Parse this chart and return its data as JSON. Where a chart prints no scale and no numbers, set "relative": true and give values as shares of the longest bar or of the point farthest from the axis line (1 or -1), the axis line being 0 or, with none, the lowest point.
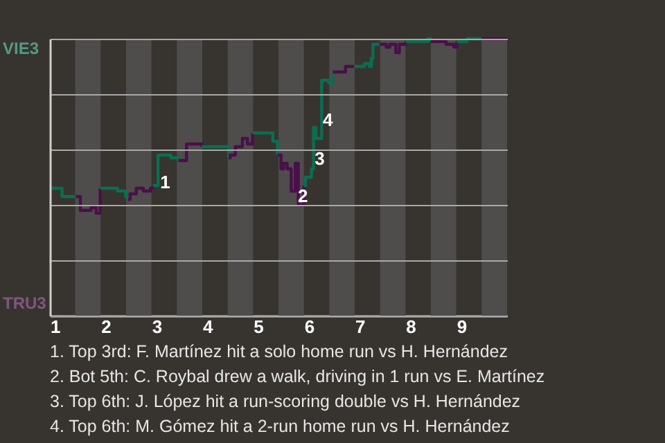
{
  "chart_data": {
    "type": "step",
    "relative": true,
    "xlim": [
      1,
      10
    ],
    "xticks": [
      1,
      2,
      3,
      4,
      5,
      6,
      7,
      8,
      9
    ],
    "grid": "y",
    "line_style": "solid",
    "bands": [
      {
        "axis": "x",
        "from": 1.5,
        "to": 2,
        "color": "#4e4d4b"
      },
      {
        "axis": "x",
        "from": 2.5,
        "to": 3,
        "color": "#4e4d4b"
      },
      {
        "axis": "x",
        "from": 3.5,
        "to": 4,
        "color": "#4e4d4b"
      },
      {
        "axis": "x",
        "from": 4.5,
        "to": 5,
        "color": "#4e4d4b"
      },
      {
        "axis": "x",
        "from": 5.5,
        "to": 6,
        "color": "#4e4d4b"
      },
      {
        "axis": "x",
        "from": 6.5,
        "to": 7,
        "color": "#4e4d4b"
      },
      {
        "axis": "x",
        "from": 7.5,
        "to": 8,
        "color": "#4e4d4b"
      },
      {
        "axis": "x",
        "from": 8.5,
        "to": 9,
        "color": "#4e4d4b"
      },
      {
        "axis": "x",
        "from": 9.5,
        "to": 10,
        "color": "#4e4d4b"
      }
    ],
    "series": [
      {
        "color": "#0b6e50",
        "x": [
          1,
          1.24,
          1.51
        ],
        "values": [
          0.46,
          0.43,
          0.43
        ]
      },
      {
        "color": "#4a0f4a",
        "x": [
          1.51,
          1.6,
          1.81,
          1.91,
          1.99
        ],
        "values": [
          0.43,
          0.38,
          0.39,
          0.37,
          0.46
        ]
      },
      {
        "color": "#0b6e50",
        "x": [
          1.99,
          2.18,
          2.33,
          2.49,
          2.54
        ],
        "values": [
          0.46,
          0.46,
          0.45,
          0.43,
          0.42
        ]
      },
      {
        "color": "#4a0f4a",
        "x": [
          2.54,
          2.58,
          2.7,
          2.84,
          2.98,
          3.03
        ],
        "values": [
          0.42,
          0.44,
          0.46,
          0.45,
          0.46,
          0.47
        ]
      },
      {
        "color": "#0b6e50",
        "x": [
          3.03,
          3.13,
          3.38,
          3.53
        ],
        "values": [
          0.47,
          0.58,
          0.57,
          0.56
        ]
      },
      {
        "color": "#4a0f4a",
        "x": [
          3.53,
          3.69,
          3.99
        ],
        "values": [
          0.56,
          0.62,
          0.61
        ]
      },
      {
        "color": "#0b6e50",
        "x": [
          3.99,
          4.52
        ],
        "values": [
          0.61,
          0.57
        ]
      },
      {
        "color": "#4a0f4a",
        "x": [
          4.52,
          4.55,
          4.65,
          4.79,
          4.89,
          4.99
        ],
        "values": [
          0.57,
          0.58,
          0.61,
          0.64,
          0.62,
          0.66
        ]
      },
      {
        "color": "#0b6e50",
        "x": [
          4.99,
          5.39,
          5.48
        ],
        "values": [
          0.66,
          0.63,
          0.58
        ]
      },
      {
        "color": "#4a0f4a",
        "x": [
          5.48,
          5.55,
          5.6,
          5.67,
          5.75,
          5.83,
          5.89,
          6
        ],
        "values": [
          0.58,
          0.53,
          0.55,
          0.53,
          0.45,
          0.55,
          0.4,
          0.47
        ]
      },
      {
        "color": "#0b6e50",
        "x": [
          6,
          6.03,
          6.15,
          6.19,
          6.24,
          6.35,
          6.49,
          6.57
        ],
        "values": [
          0.47,
          0.5,
          0.53,
          0.68,
          0.64,
          0.85,
          0.84,
          0.88
        ]
      },
      {
        "color": "#4a0f4a",
        "x": [
          6.57,
          6.82,
          6.99
        ],
        "values": [
          0.88,
          0.9,
          0.9
        ]
      },
      {
        "color": "#0b6e50",
        "x": [
          6.99,
          7.09,
          7.19,
          7.29,
          7.33,
          7.36,
          7.49
        ],
        "values": [
          0.9,
          0.9,
          0.91,
          0.9,
          0.93,
          0.98,
          0.98
        ]
      },
      {
        "color": "#4a0f4a",
        "x": [
          7.49,
          7.62,
          7.69,
          7.81,
          7.88,
          8.01
        ],
        "values": [
          0.98,
          0.97,
          0.98,
          0.95,
          0.98,
          0.99
        ]
      },
      {
        "color": "#0b6e50",
        "x": [
          8.01,
          8.44,
          8.5
        ],
        "values": [
          0.99,
          1,
          0.99
        ]
      },
      {
        "color": "#4a0f4a",
        "x": [
          8.5,
          8.59,
          8.8,
          8.95,
          9.01
        ],
        "values": [
          0.99,
          0.99,
          0.98,
          0.97,
          0.99
        ]
      },
      {
        "color": "#0b6e50",
        "x": [
          9.01,
          9.21,
          9.5
        ],
        "values": [
          0.99,
          1,
          1
        ]
      },
      {
        "color": "#4a0f4a",
        "x": [
          9.5,
          10
        ],
        "values": [
          1,
          1
        ]
      }
    ],
    "annotations": [
      "VIE3",
      "TRU3",
      {
        "text": "1",
        "x": 3.27,
        "y": 0.48
      },
      {
        "text": "2",
        "x": 5.98,
        "y": 0.43
      },
      {
        "text": "3",
        "x": 6.31,
        "y": 0.565
      },
      {
        "text": "4",
        "x": 6.47,
        "y": 0.705
      },
      "1. Top 3rd: F. Martínez hit a solo home run vs H. Hernández",
      "2. Bot 5th: C. Roybal drew a walk, driving in 1 run vs E. Martínez",
      "3. Top 6th: J. López hit a run-scoring double vs H. Hernández",
      "4. Top 6th: M. Gómez hit a 2-run home run vs H. Hernández"
    ]
  }
}
